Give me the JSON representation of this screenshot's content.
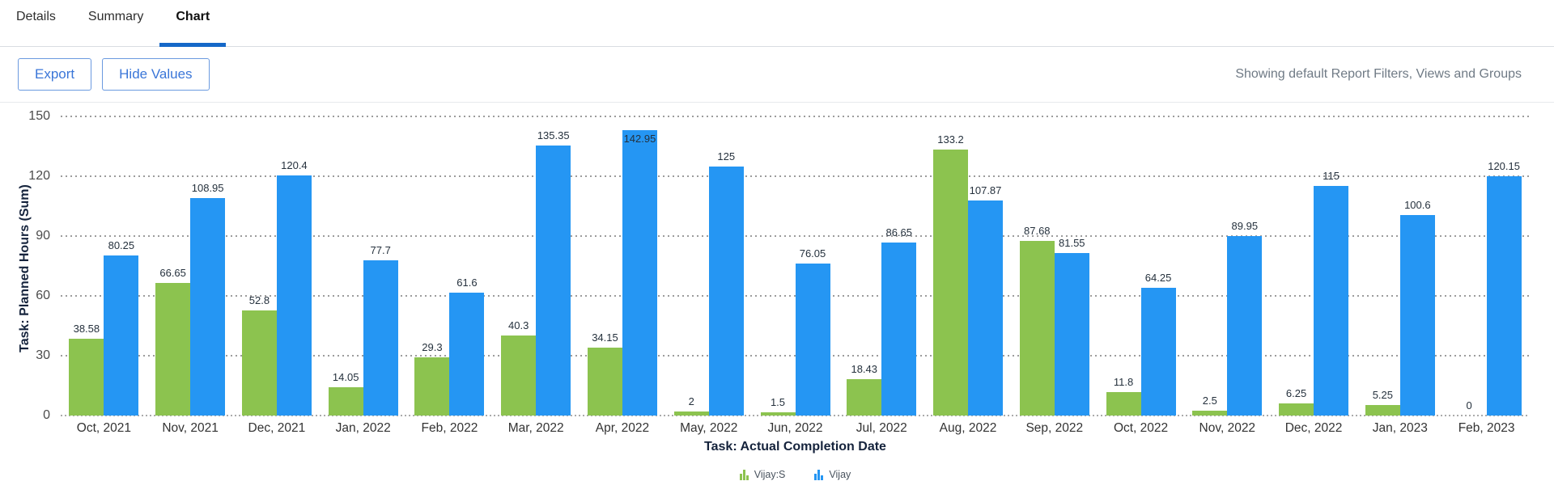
{
  "tabs": {
    "items": [
      {
        "label": "Details",
        "active": false
      },
      {
        "label": "Summary",
        "active": false
      },
      {
        "label": "Chart",
        "active": true
      }
    ]
  },
  "toolbar": {
    "export_label": "Export",
    "hide_values_label": "Hide Values",
    "status_text": "Showing default Report Filters, Views and Groups"
  },
  "colors": {
    "series_green": "#8CC34F",
    "series_blue": "#2596F3",
    "active_tab_accent": "#1568C8",
    "button_blue": "#3A76D8",
    "gridline_gray": "#9C9C9C"
  },
  "chart_data": {
    "type": "bar",
    "title": "",
    "xlabel": "Task: Actual Completion Date",
    "ylabel": "Task: Planned Hours (Sum)",
    "categories": [
      "Oct, 2021",
      "Nov, 2021",
      "Dec, 2021",
      "Jan, 2022",
      "Feb, 2022",
      "Mar, 2022",
      "Apr, 2022",
      "May, 2022",
      "Jun, 2022",
      "Jul, 2022",
      "Aug, 2022",
      "Sep, 2022",
      "Oct, 2022",
      "Nov, 2022",
      "Dec, 2022",
      "Jan, 2023",
      "Feb, 2023"
    ],
    "series": [
      {
        "name": "Vijay:S",
        "color": "#8CC34F",
        "values": [
          38.58,
          66.65,
          52.8,
          14.05,
          29.3,
          40.3,
          34.15,
          2,
          1.5,
          18.43,
          133.2,
          87.68,
          11.8,
          2.5,
          6.25,
          5.25,
          0
        ]
      },
      {
        "name": "Vijay",
        "color": "#2596F3",
        "values": [
          80.25,
          108.95,
          120.4,
          77.7,
          61.6,
          135.35,
          142.95,
          125,
          76.05,
          86.65,
          107.87,
          81.55,
          64.25,
          89.95,
          115,
          100.6,
          120.15
        ]
      }
    ],
    "ylim": [
      0,
      150
    ],
    "yticks": [
      0,
      30,
      60,
      90,
      120,
      150
    ],
    "grid": "horizontal-dotted",
    "legend_position": "bottom",
    "value_labels_shown": true
  }
}
